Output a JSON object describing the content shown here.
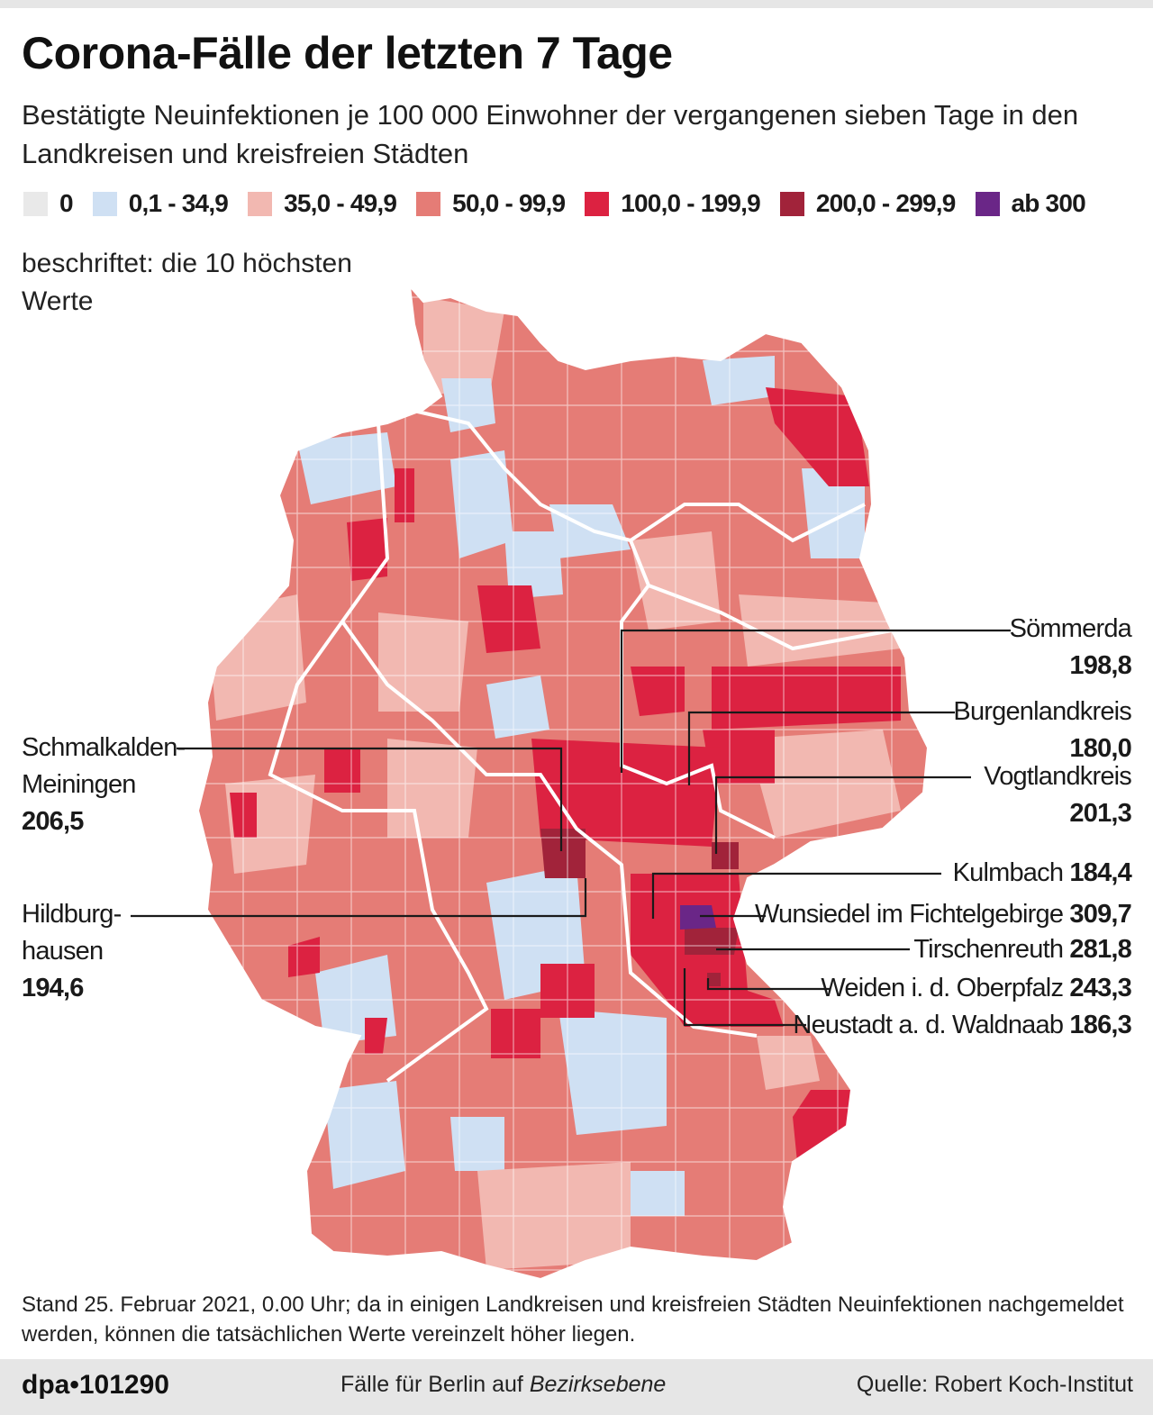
{
  "title": "Corona-Fälle der letzten 7 Tage",
  "subtitle": "Bestätigte Neuinfektionen je 100 000 Einwohner der vergangenen sieben Tage in den Landkreisen und kreisfreien Städten",
  "legend": [
    {
      "label": "0",
      "color": "#e9e9e9"
    },
    {
      "label": "0,1 - 34,9",
      "color": "#cfe0f3"
    },
    {
      "label": "35,0 - 49,9",
      "color": "#f2b8b1"
    },
    {
      "label": "50,0 - 99,9",
      "color": "#e57c76"
    },
    {
      "label": "100,0 - 199,9",
      "color": "#dc2241"
    },
    {
      "label": "200,0 - 299,9",
      "color": "#a1233a"
    },
    {
      "label": "ab 300",
      "color": "#6a2687"
    }
  ],
  "note": "beschriftet: die 10 höchsten Werte",
  "callouts": {
    "soemmerda": {
      "name": "Sömmerda",
      "value": "198,8"
    },
    "burgenlandkreis": {
      "name": "Burgenlandkreis",
      "value": "180,0"
    },
    "vogtlandkreis": {
      "name": "Vogtlandkreis",
      "value": "201,3"
    },
    "kulmbach": {
      "name": "Kulmbach",
      "value": "184,4"
    },
    "wunsiedel": {
      "name": "Wunsiedel im Fichtelgebirge",
      "value": "309,7"
    },
    "tirschenreuth": {
      "name": "Tirschenreuth",
      "value": "281,8"
    },
    "weiden": {
      "name": "Weiden i. d. Oberpfalz",
      "value": "243,3"
    },
    "neustadt": {
      "name": "Neustadt a. d. Waldnaab",
      "value": "186,3"
    },
    "schmalkalden": {
      "name1": "Schmalkalden-",
      "name2": "Meiningen",
      "value": "206,5"
    },
    "hildburghausen": {
      "name1": "Hildburg-",
      "name2": "hausen",
      "value": "194,6"
    }
  },
  "footnote": "Stand 25. Februar 2021, 0.00 Uhr; da in einigen Landkreisen und kreisfreien Städten Neuinfektionen nachgemeldet werden, können die tatsächlichen Werte vereinzelt höher liegen.",
  "footer": {
    "brand": "dpa•101290",
    "center_prefix": "Fälle für Berlin auf ",
    "center_italic": "Bezirksebene",
    "source": "Quelle: Robert Koch-Institut"
  }
}
